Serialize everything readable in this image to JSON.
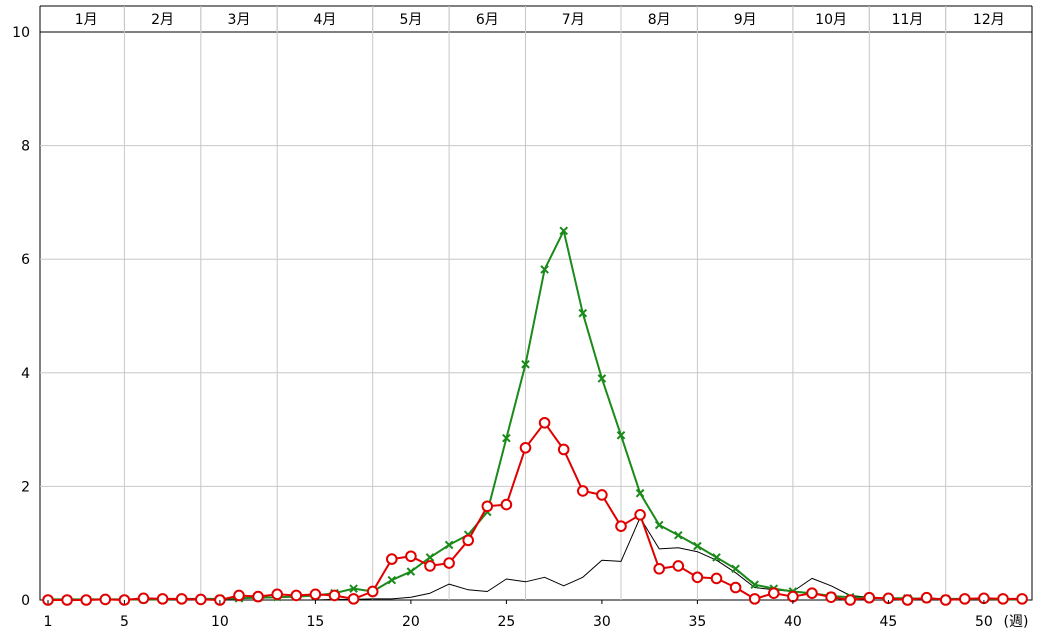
{
  "chart_data": {
    "type": "line",
    "x_unit_label": "(週)",
    "xlim": [
      1,
      52
    ],
    "ylim": [
      0,
      10
    ],
    "y_ticks": [
      0,
      2,
      4,
      6,
      8,
      10
    ],
    "x_ticks": [
      1,
      5,
      10,
      15,
      20,
      25,
      30,
      35,
      40,
      45,
      50
    ],
    "grid": true,
    "months": [
      {
        "label": "1月",
        "start": 1,
        "end": 5
      },
      {
        "label": "2月",
        "start": 5,
        "end": 9
      },
      {
        "label": "3月",
        "start": 9,
        "end": 13
      },
      {
        "label": "4月",
        "start": 13,
        "end": 18
      },
      {
        "label": "5月",
        "start": 18,
        "end": 22
      },
      {
        "label": "6月",
        "start": 22,
        "end": 26
      },
      {
        "label": "7月",
        "start": 26,
        "end": 31
      },
      {
        "label": "8月",
        "start": 31,
        "end": 35
      },
      {
        "label": "9月",
        "start": 35,
        "end": 40
      },
      {
        "label": "10月",
        "start": 40,
        "end": 44
      },
      {
        "label": "11月",
        "start": 44,
        "end": 48
      },
      {
        "label": "12月",
        "start": 48,
        "end": 53
      }
    ],
    "series": [
      {
        "marker": "x",
        "color": "#1a8a1a",
        "x": [
          1,
          2,
          3,
          4,
          5,
          6,
          7,
          8,
          9,
          10,
          11,
          12,
          13,
          14,
          15,
          16,
          17,
          18,
          19,
          20,
          21,
          22,
          23,
          24,
          25,
          26,
          27,
          28,
          29,
          30,
          31,
          32,
          33,
          34,
          35,
          36,
          37,
          38,
          39,
          40,
          41,
          42,
          43,
          44,
          45,
          46,
          47,
          48,
          49,
          50,
          51,
          52
        ],
        "values": [
          0.01,
          0.01,
          0.01,
          0.01,
          0.01,
          0.01,
          0.01,
          0.02,
          0.02,
          0.02,
          0.03,
          0.04,
          0.05,
          0.06,
          0.08,
          0.12,
          0.2,
          0.15,
          0.35,
          0.5,
          0.75,
          0.97,
          1.15,
          1.55,
          2.85,
          4.15,
          5.82,
          6.5,
          5.05,
          3.9,
          2.9,
          1.88,
          1.32,
          1.14,
          0.95,
          0.75,
          0.55,
          0.27,
          0.2,
          0.15,
          0.12,
          0.07,
          0.05,
          0.04,
          0.03,
          0.03,
          0.02,
          0.02,
          0.02,
          0.02,
          0.01,
          0.01
        ]
      },
      {
        "marker": "circle",
        "color": "#e00000",
        "x": [
          1,
          2,
          3,
          4,
          5,
          6,
          7,
          8,
          9,
          10,
          11,
          12,
          13,
          14,
          15,
          16,
          17,
          18,
          19,
          20,
          21,
          22,
          23,
          24,
          25,
          26,
          27,
          28,
          29,
          30,
          31,
          32,
          33,
          34,
          35,
          36,
          37,
          38,
          39,
          40,
          41,
          42,
          43,
          44,
          45,
          46,
          47,
          48,
          49,
          50,
          51,
          52
        ],
        "values": [
          0,
          0,
          0,
          0.01,
          0,
          0.03,
          0.02,
          0.02,
          0.01,
          0,
          0.08,
          0.06,
          0.1,
          0.08,
          0.1,
          0.08,
          0.02,
          0.15,
          0.72,
          0.77,
          0.6,
          0.65,
          1.05,
          1.65,
          1.68,
          2.68,
          3.12,
          2.65,
          1.92,
          1.85,
          1.3,
          1.5,
          0.55,
          0.6,
          0.4,
          0.38,
          0.22,
          0.02,
          0.12,
          0.06,
          0.12,
          0.05,
          0,
          0.04,
          0.03,
          0,
          0.04,
          0,
          0.02,
          0.03,
          0.02,
          0.02
        ]
      },
      {
        "marker": "none",
        "color": "#000000",
        "x": [
          1,
          2,
          3,
          4,
          5,
          6,
          7,
          8,
          9,
          10,
          11,
          12,
          13,
          14,
          15,
          16,
          17,
          18,
          19,
          20,
          21,
          22,
          23,
          24,
          25,
          26,
          27,
          28,
          29,
          30,
          31,
          32,
          33,
          34,
          35,
          36,
          37,
          38,
          39,
          40,
          41,
          42,
          43,
          44,
          45,
          46,
          47,
          48,
          49,
          50,
          51,
          52
        ],
        "values": [
          0,
          0,
          0,
          0,
          0,
          0,
          0,
          0,
          0,
          0,
          0,
          0,
          0,
          0,
          0,
          0.01,
          0.01,
          0.02,
          0.02,
          0.05,
          0.12,
          0.28,
          0.18,
          0.15,
          0.37,
          0.32,
          0.4,
          0.25,
          0.4,
          0.7,
          0.68,
          1.45,
          0.9,
          0.92,
          0.85,
          0.7,
          0.48,
          0.22,
          0.18,
          0.15,
          0.38,
          0.25,
          0.08,
          0.05,
          0.03,
          0.02,
          0.02,
          0.01,
          0.01,
          0.01,
          0.01,
          0
        ]
      }
    ]
  }
}
